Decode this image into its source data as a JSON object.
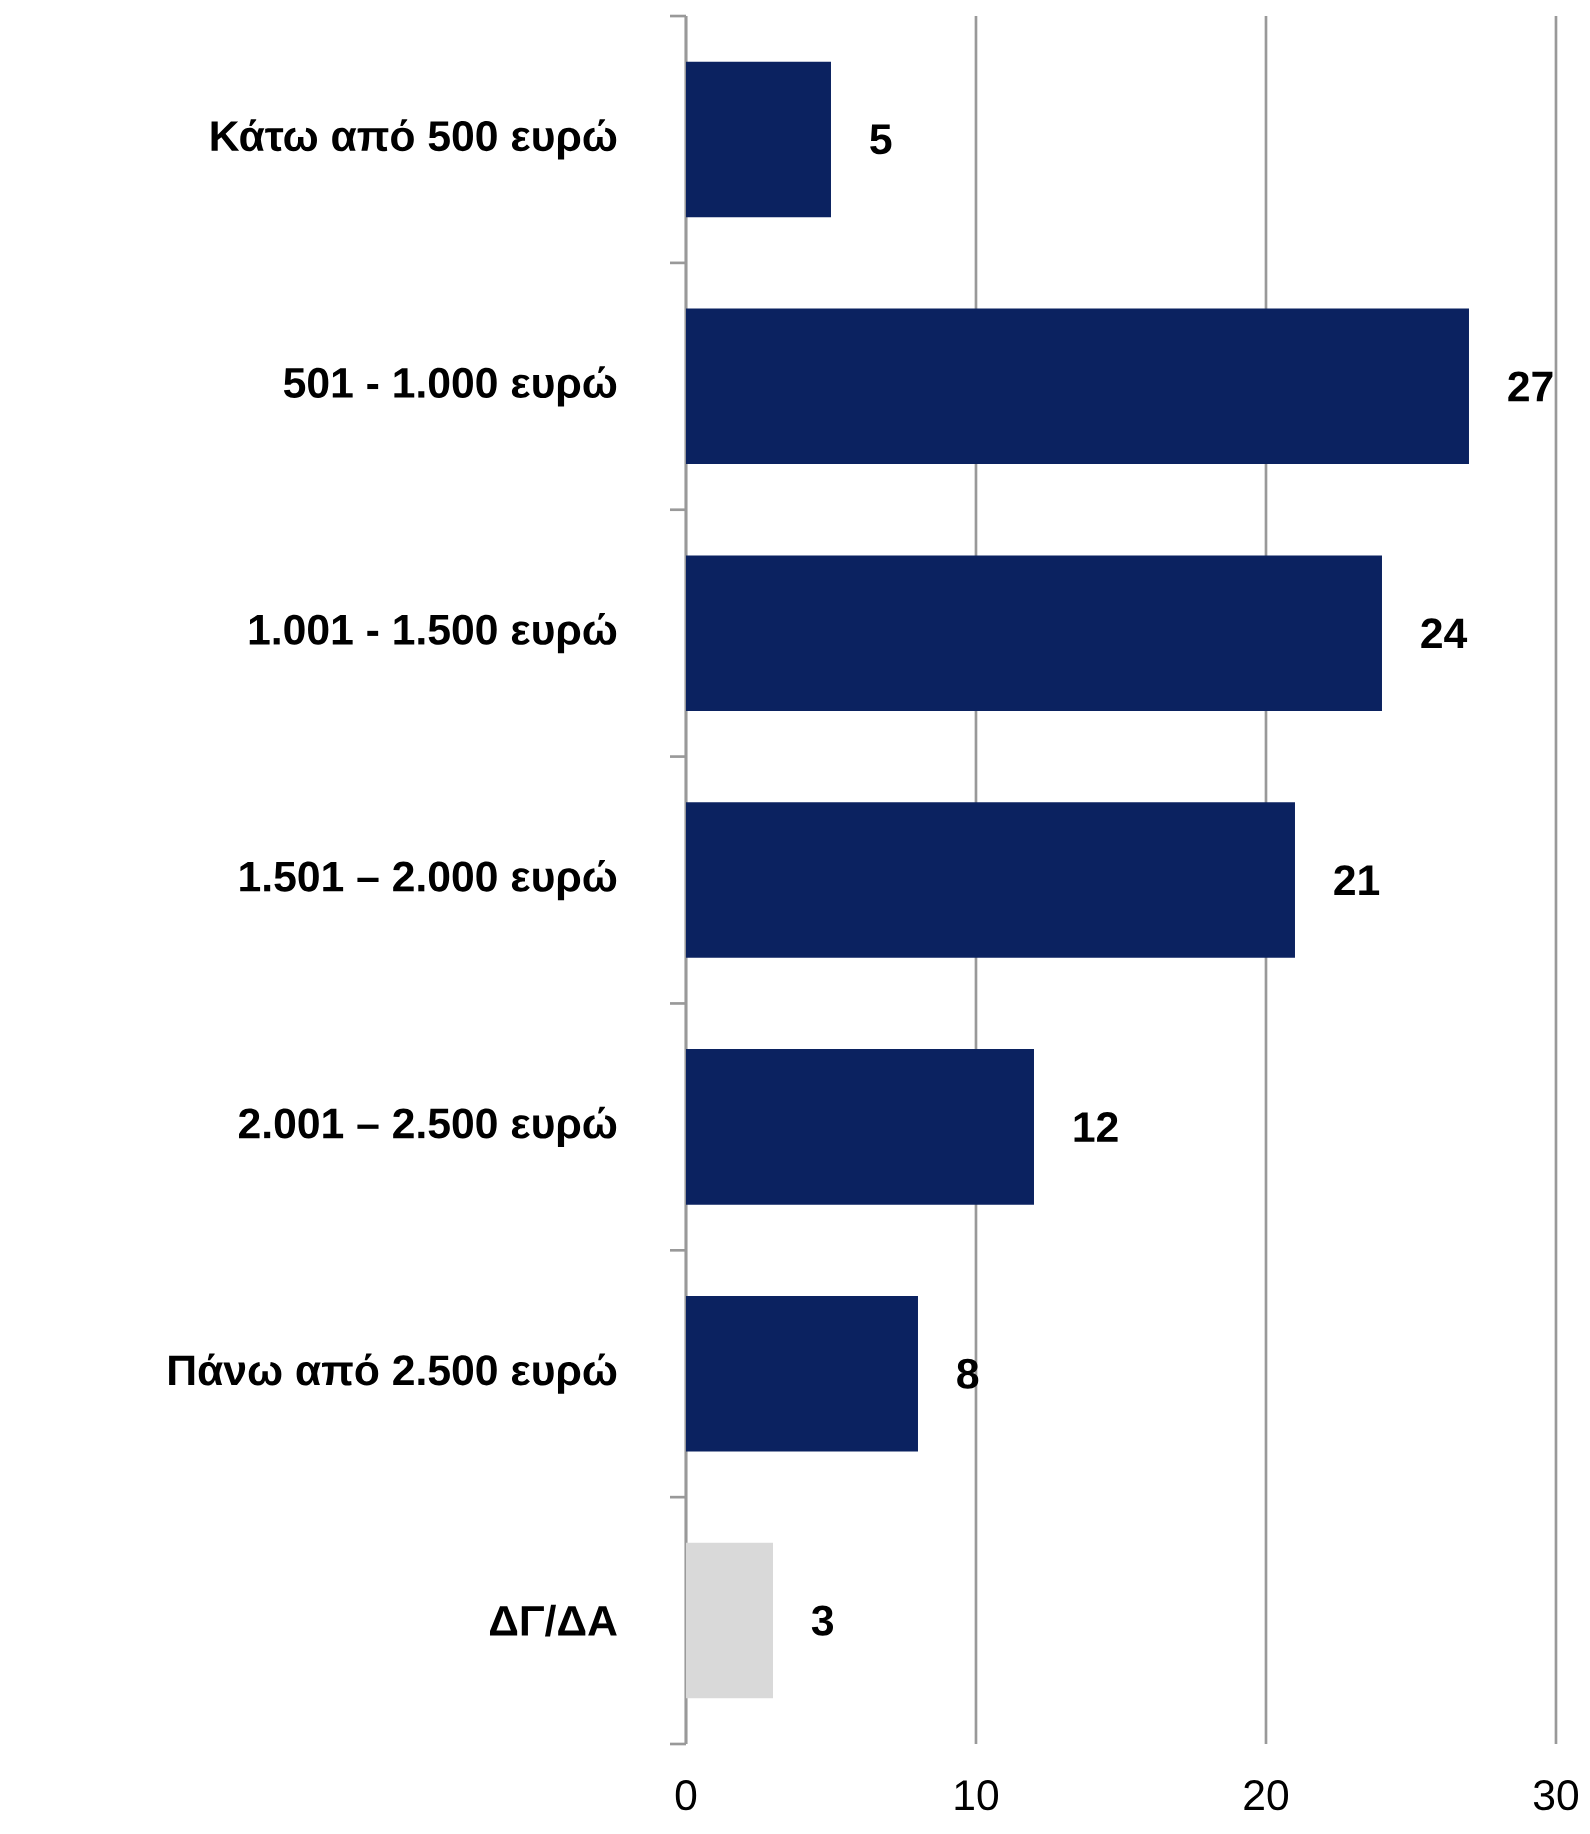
{
  "chart_data": {
    "type": "bar",
    "orientation": "horizontal",
    "categories": [
      "Κάτω από 500 ευρώ",
      "501 - 1.000 ευρώ",
      "1.001 - 1.500 ευρώ",
      "1.501 – 2.000 ευρώ",
      "2.001 – 2.500 ευρώ",
      "Πάνω από 2.500 ευρώ",
      "ΔΓ/ΔΑ"
    ],
    "values": [
      5,
      27,
      24,
      21,
      12,
      8,
      3
    ],
    "colors": [
      "#0b2260",
      "#0b2260",
      "#0b2260",
      "#0b2260",
      "#0b2260",
      "#0b2260",
      "#d9d9d9"
    ],
    "xlim": [
      0,
      30
    ],
    "xticks": [
      0,
      10,
      20,
      30
    ],
    "grid": "x",
    "data_labels": true
  }
}
